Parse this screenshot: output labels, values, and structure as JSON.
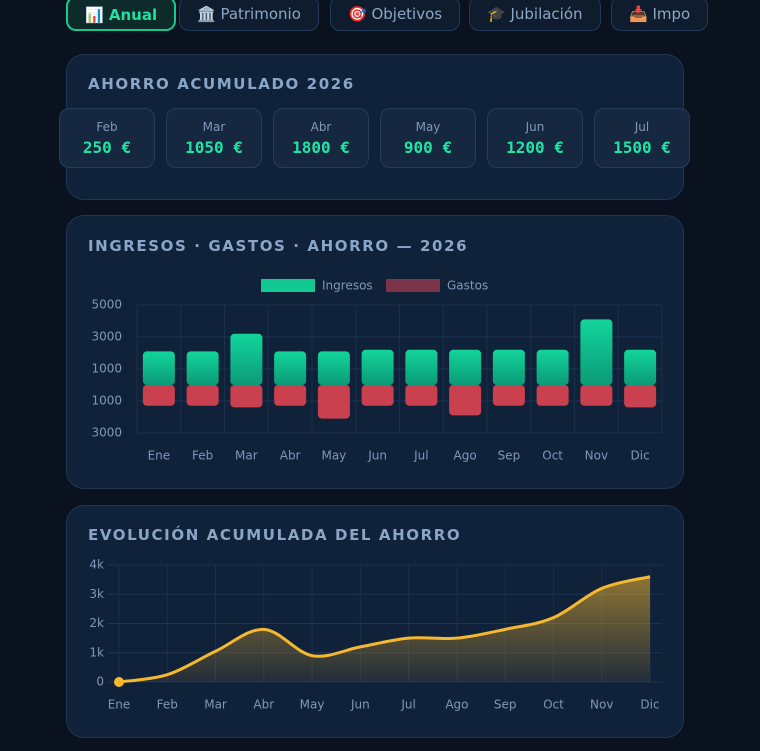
{
  "tabs": [
    "📊 Anual",
    "🏛️ Patrimonio",
    "🎯 Objetivos",
    "🎓 Jubilación",
    "📥 Impo"
  ],
  "active_tab": 0,
  "savings_panel": {
    "title": "AHORRO ACUMULADO 2026",
    "cards": [
      {
        "month": "Feb",
        "value": 250,
        "label": "250 €"
      },
      {
        "month": "Mar",
        "value": 1050,
        "label": "1050 €"
      },
      {
        "month": "Abr",
        "value": 1800,
        "label": "1800 €"
      },
      {
        "month": "May",
        "value": 900,
        "label": "900 €"
      },
      {
        "month": "Jun",
        "value": 1200,
        "label": "1200 €"
      },
      {
        "month": "Jul",
        "value": 1500,
        "label": "1500 €"
      }
    ]
  },
  "chart_data": [
    {
      "type": "bar",
      "title": "INGRESOS · GASTOS · AHORRO — 2026",
      "categories": [
        "Ene",
        "Feb",
        "Mar",
        "Abr",
        "May",
        "Jun",
        "Jul",
        "Ago",
        "Sep",
        "Oct",
        "Nov",
        "Dic"
      ],
      "series": [
        {
          "name": "Ingresos",
          "color": "#12c992",
          "values": [
            2100,
            2100,
            3200,
            2100,
            2100,
            2200,
            2200,
            2200,
            2200,
            2200,
            4100,
            2200
          ]
        },
        {
          "name": "Gastos",
          "color": "#c9404f",
          "values": [
            -1300,
            -1300,
            -1400,
            -1300,
            -2100,
            -1300,
            -1300,
            -1900,
            -1300,
            -1300,
            -1300,
            -1400
          ]
        }
      ],
      "ylim": [
        -3000,
        5000
      ],
      "yticks": [
        5000,
        3000,
        1000,
        {
          "value": -1000,
          "label": "1000"
        },
        {
          "value": -3000,
          "label": "3000"
        }
      ],
      "grid": true,
      "legend": "top"
    },
    {
      "type": "area",
      "title": "EVOLUCIÓN ACUMULADA DEL AHORRO",
      "categories": [
        "Ene",
        "Feb",
        "Mar",
        "Abr",
        "May",
        "Jun",
        "Jul",
        "Ago",
        "Sep",
        "Oct",
        "Nov",
        "Dic"
      ],
      "values": [
        0,
        250,
        1050,
        1800,
        900,
        1200,
        1500,
        1500,
        1800,
        2200,
        3200,
        3600
      ],
      "color": "#f5b82e",
      "ylim": [
        0,
        4000
      ],
      "yticks": [
        0,
        {
          "value": 1000,
          "label": "1k"
        },
        {
          "value": 2000,
          "label": "2k"
        },
        {
          "value": 3000,
          "label": "3k"
        },
        {
          "value": 4000,
          "label": "4k"
        }
      ],
      "grid": true
    }
  ]
}
